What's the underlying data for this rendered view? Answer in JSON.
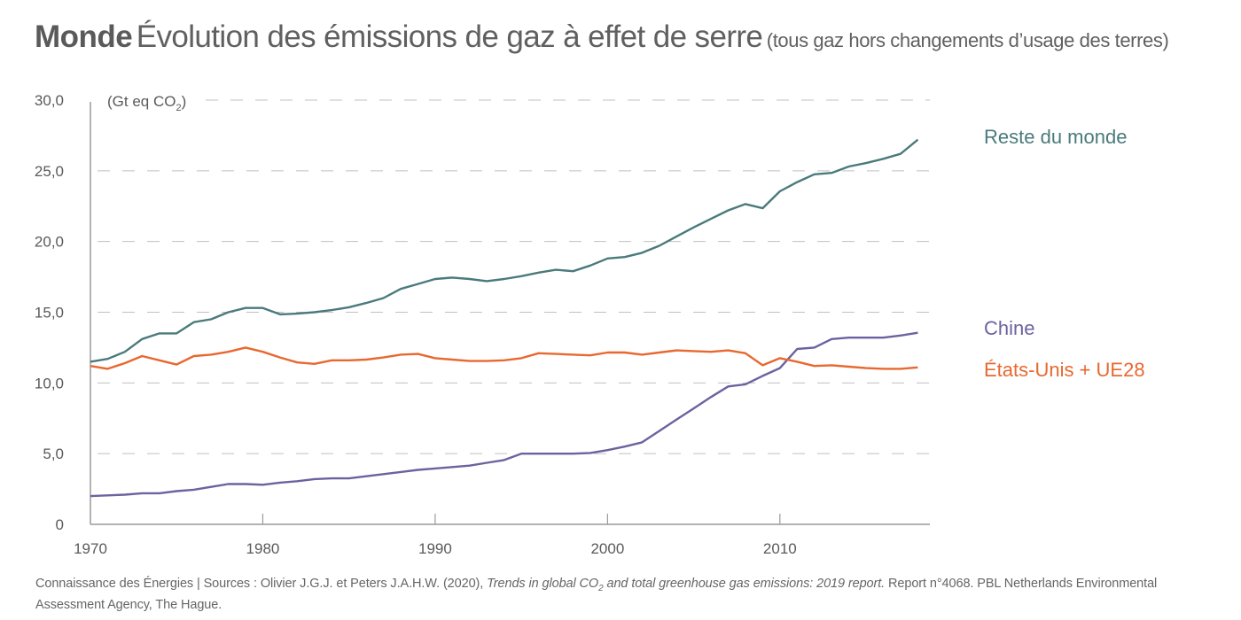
{
  "header": {
    "title_bold": "Monde",
    "title_main": "Évolution des émissions de gaz à effet de serre",
    "title_sub": "(tous gaz hors changements d’usage des terres)"
  },
  "footer": {
    "part1": "Connaissance des Énergies | Sources : Olivier J.G.J. et Peters J.A.H.W. (2020), ",
    "italic1": "Trends in global CO",
    "italic_sub": "2",
    "italic2": " and total greenhouse gas emissions: 2019 report.",
    "part2": " Report n°4068. PBL Netherlands Environmental Assessment Agency, The Hague."
  },
  "chart_data": {
    "type": "line",
    "title": "Monde Évolution des émissions de gaz à effet de serre (tous gaz hors changements d’usage des terres)",
    "xlabel": "",
    "ylabel": "(Gt eq CO2)",
    "ylabel_main": "(Gt eq CO",
    "ylabel_sub": "2",
    "ylabel_end": ")",
    "xlim": [
      1970,
      2018.7
    ],
    "ylim": [
      0,
      30
    ],
    "grid": true,
    "x_ticks": [
      1970,
      1980,
      1990,
      2000,
      2010
    ],
    "x_tick_labels": [
      "1970",
      "1980",
      "1990",
      "2000",
      "2010"
    ],
    "y_ticks": [
      0,
      5,
      10,
      15,
      20,
      25,
      30
    ],
    "y_tick_labels": [
      "0",
      "5,0",
      "10,0",
      "15,0",
      "20,0",
      "25,0",
      "30,0"
    ],
    "legend_placement": "right (direct labels)",
    "x": [
      1970,
      1971,
      1972,
      1973,
      1974,
      1975,
      1976,
      1977,
      1978,
      1979,
      1980,
      1981,
      1982,
      1983,
      1984,
      1985,
      1986,
      1987,
      1988,
      1989,
      1990,
      1991,
      1992,
      1993,
      1994,
      1995,
      1996,
      1997,
      1998,
      1999,
      2000,
      2001,
      2002,
      2003,
      2004,
      2005,
      2006,
      2007,
      2008,
      2009,
      2010,
      2011,
      2012,
      2013,
      2014,
      2015,
      2016,
      2017,
      2018
    ],
    "series": [
      {
        "name": "Reste du monde",
        "color": "#4a7a7c",
        "values": [
          11.5,
          11.7,
          12.2,
          13.1,
          13.5,
          13.5,
          14.3,
          14.5,
          15.0,
          15.3,
          15.3,
          14.85,
          14.9,
          15.0,
          15.15,
          15.35,
          15.65,
          16.0,
          16.65,
          17.0,
          17.35,
          17.45,
          17.35,
          17.2,
          17.35,
          17.55,
          17.8,
          18.0,
          17.9,
          18.3,
          18.8,
          18.9,
          19.2,
          19.7,
          20.35,
          21.0,
          21.6,
          22.2,
          22.65,
          22.35,
          23.55,
          24.2,
          24.75,
          24.85,
          25.3,
          25.55,
          25.85,
          26.2,
          27.2
        ]
      },
      {
        "name": "Chine",
        "color": "#6a63a0",
        "values": [
          2.0,
          2.05,
          2.1,
          2.2,
          2.2,
          2.35,
          2.45,
          2.65,
          2.85,
          2.85,
          2.8,
          2.95,
          3.05,
          3.2,
          3.25,
          3.25,
          3.4,
          3.55,
          3.7,
          3.85,
          3.95,
          4.05,
          4.15,
          4.35,
          4.55,
          5.0,
          5.0,
          5.0,
          5.0,
          5.05,
          5.25,
          5.5,
          5.8,
          6.6,
          7.4,
          8.2,
          9.0,
          9.75,
          9.9,
          10.5,
          11.05,
          12.4,
          12.5,
          13.1,
          13.2,
          13.2,
          13.2,
          13.35,
          13.55
        ]
      },
      {
        "name": "États-Unis + UE28",
        "color": "#e8682f",
        "values": [
          11.2,
          11.0,
          11.4,
          11.9,
          11.6,
          11.3,
          11.9,
          12.0,
          12.2,
          12.5,
          12.2,
          11.8,
          11.45,
          11.35,
          11.6,
          11.6,
          11.65,
          11.8,
          12.0,
          12.05,
          11.75,
          11.65,
          11.55,
          11.55,
          11.6,
          11.75,
          12.1,
          12.05,
          12.0,
          11.95,
          12.15,
          12.15,
          12.0,
          12.15,
          12.3,
          12.25,
          12.2,
          12.3,
          12.1,
          11.25,
          11.75,
          11.5,
          11.2,
          11.25,
          11.15,
          11.05,
          11.0,
          11.0,
          11.1
        ]
      }
    ]
  },
  "colors": {
    "text": "#5a5a5a",
    "axis": "#9a9a9a",
    "grid": "#c0c0c0",
    "reste_du_monde": "#4a7a7c",
    "chine": "#6a63a0",
    "etats_unis_ue28": "#e8682f"
  }
}
